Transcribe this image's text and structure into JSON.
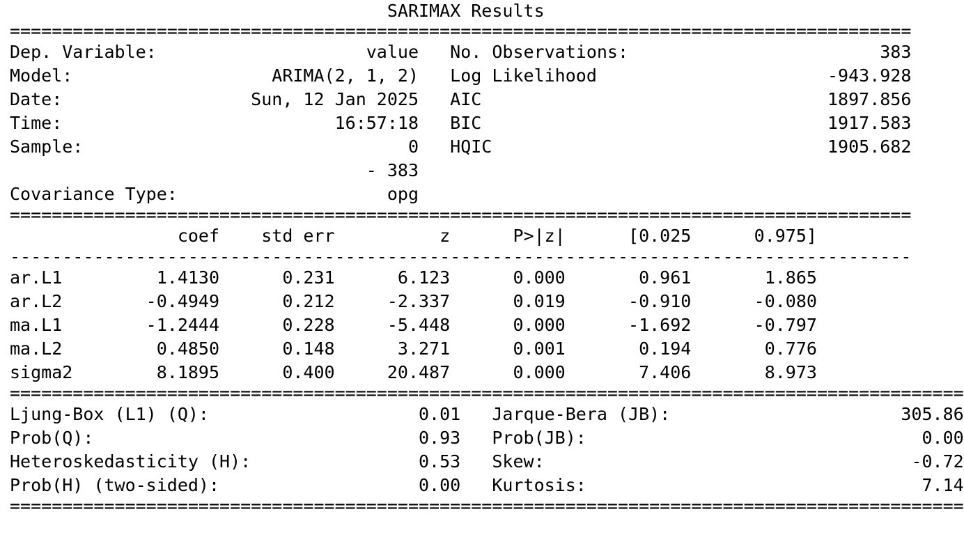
{
  "title": "SARIMAX Results",
  "rule_equals_short": "======================================================================================",
  "rule_dash_short": "--------------------------------------------------------------------------------------",
  "rule_equals_long": "===========================================================================================",
  "header": {
    "left": [
      {
        "label": "Dep. Variable:",
        "value": "value"
      },
      {
        "label": "Model:",
        "value": "ARIMA(2, 1, 2)"
      },
      {
        "label": "Date:",
        "value": "Sun, 12 Jan 2025"
      },
      {
        "label": "Time:",
        "value": "16:57:18"
      },
      {
        "label": "Sample:",
        "value": "0"
      },
      {
        "label": "",
        "value": "- 383"
      },
      {
        "label": "Covariance Type:",
        "value": "opg"
      }
    ],
    "right": [
      {
        "label": "No. Observations:",
        "value": "383"
      },
      {
        "label": "Log Likelihood",
        "value": "-943.928"
      },
      {
        "label": "AIC",
        "value": "1897.856"
      },
      {
        "label": "BIC",
        "value": "1917.583"
      },
      {
        "label": "HQIC",
        "value": "1905.682"
      }
    ]
  },
  "coef_table": {
    "columns": [
      "",
      "coef",
      "std err",
      "z",
      "P>|z|",
      "[0.025",
      "0.975]"
    ],
    "rows": [
      [
        "ar.L1",
        "1.4130",
        "0.231",
        "6.123",
        "0.000",
        "0.961",
        "1.865"
      ],
      [
        "ar.L2",
        "-0.4949",
        "0.212",
        "-2.337",
        "0.019",
        "-0.910",
        "-0.080"
      ],
      [
        "ma.L1",
        "-1.2444",
        "0.228",
        "-5.448",
        "0.000",
        "-1.692",
        "-0.797"
      ],
      [
        "ma.L2",
        "0.4850",
        "0.148",
        "3.271",
        "0.001",
        "0.194",
        "0.776"
      ],
      [
        "sigma2",
        "8.1895",
        "0.400",
        "20.487",
        "0.000",
        "7.406",
        "8.973"
      ]
    ]
  },
  "diagnostics": {
    "left": [
      {
        "label": "Ljung-Box (L1) (Q):",
        "value": "0.01"
      },
      {
        "label": "Prob(Q):",
        "value": "0.93"
      },
      {
        "label": "Heteroskedasticity (H):",
        "value": "0.53"
      },
      {
        "label": "Prob(H) (two-sided):",
        "value": "0.00"
      }
    ],
    "right": [
      {
        "label": "Jarque-Bera (JB):",
        "value": "305.86"
      },
      {
        "label": "Prob(JB):",
        "value": "0.00"
      },
      {
        "label": "Skew:",
        "value": "-0.72"
      },
      {
        "label": "Kurtosis:",
        "value": "7.14"
      }
    ]
  }
}
